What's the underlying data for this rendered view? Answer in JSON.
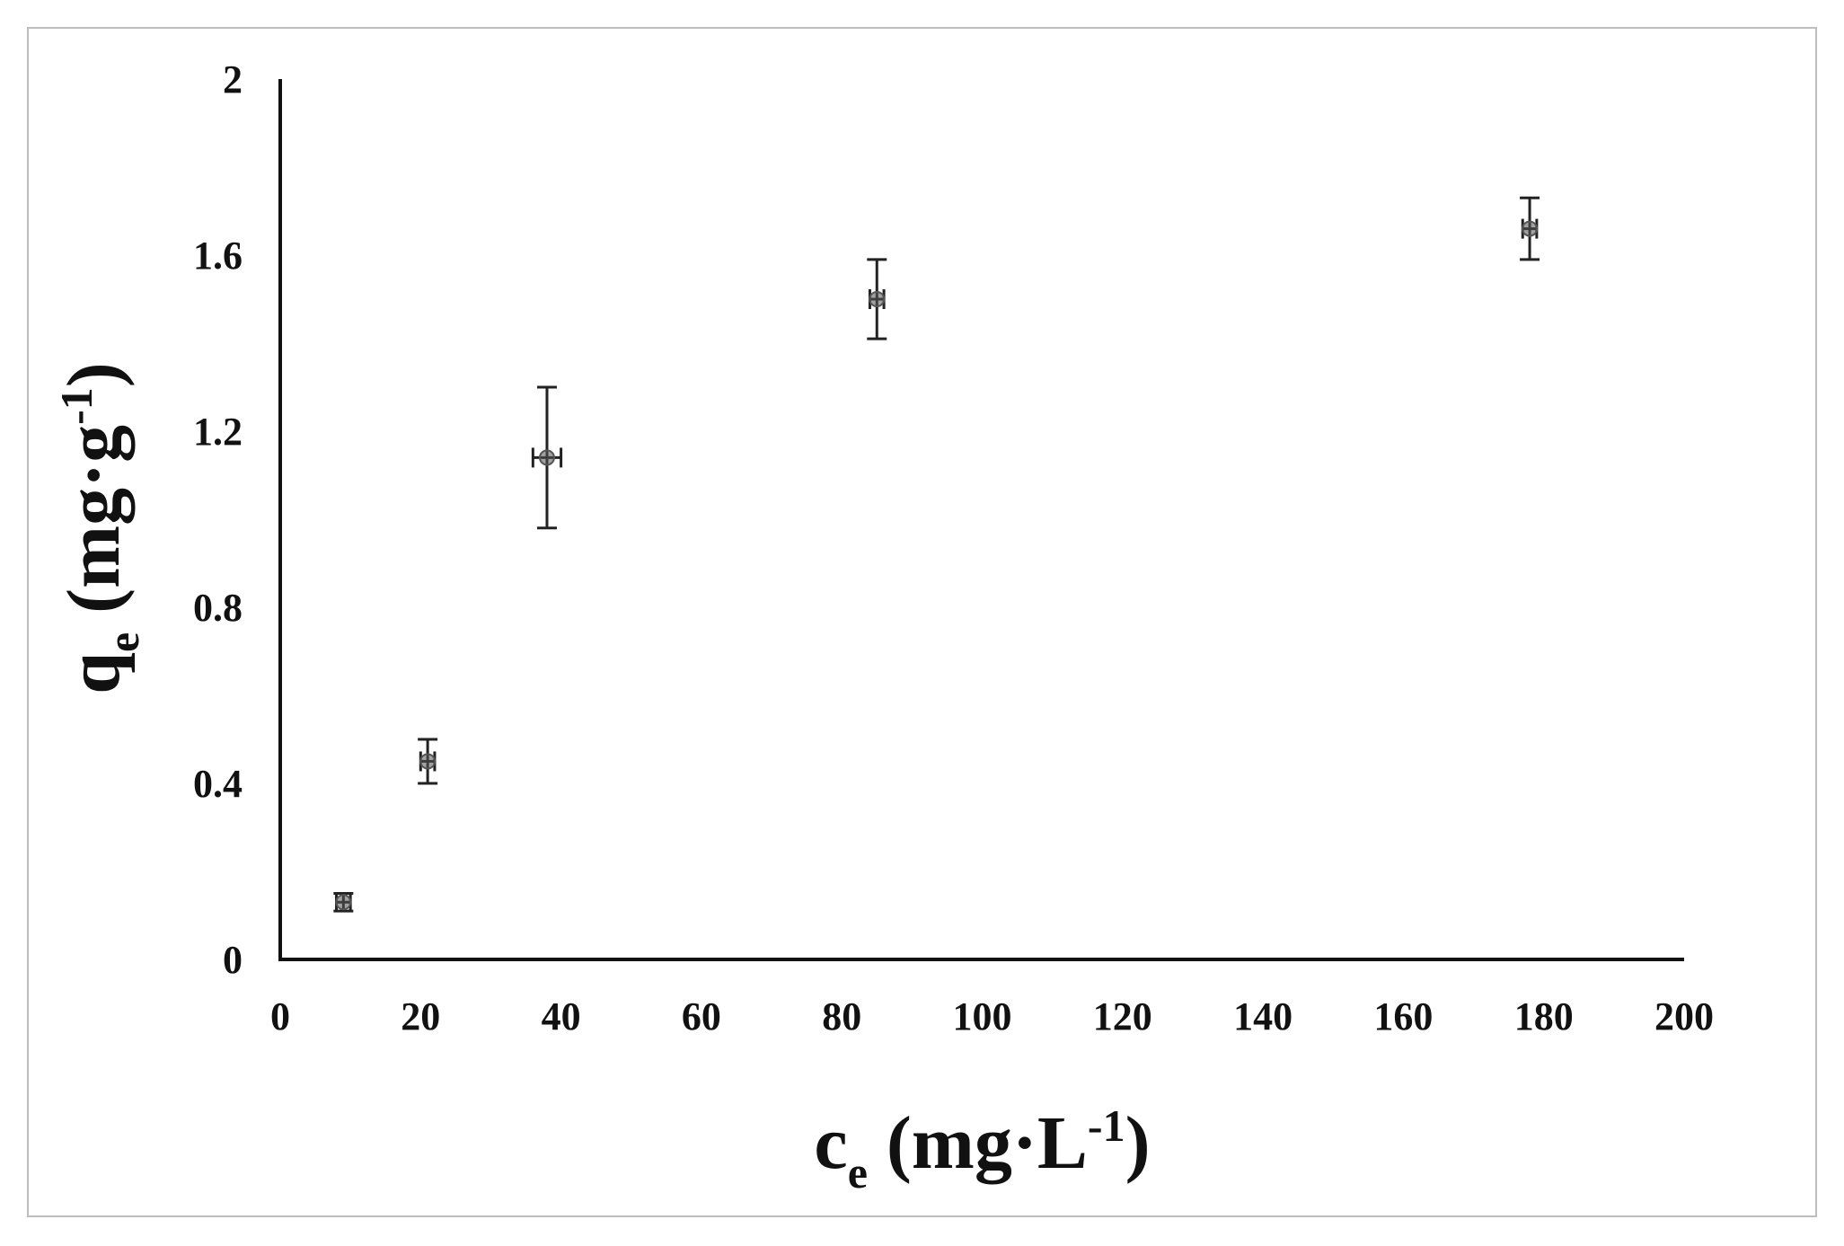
{
  "chart_data": {
    "type": "scatter",
    "title": "",
    "xlabel": {
      "main": "c",
      "sub": "e",
      "unit_pre": " (mg·L",
      "sup": "-1",
      "unit_post": ")"
    },
    "ylabel": {
      "main": "q",
      "sub": "e",
      "unit_pre": " (mg·g",
      "sup": "-1",
      "unit_post": ")"
    },
    "xlim": [
      0,
      200
    ],
    "ylim": [
      0,
      2
    ],
    "x_ticks": [
      0,
      20,
      40,
      60,
      80,
      100,
      120,
      140,
      160,
      180,
      200
    ],
    "y_ticks": [
      0,
      0.4,
      0.8,
      1.2,
      1.6,
      2
    ],
    "x_tick_labels": [
      "0",
      "20",
      "40",
      "60",
      "80",
      "100",
      "120",
      "140",
      "160",
      "180",
      "200"
    ],
    "y_tick_labels": [
      "0",
      "0.4",
      "0.8",
      "1.2",
      "1.6",
      "2"
    ],
    "grid": false,
    "series": [
      {
        "points": [
          {
            "x": 9,
            "y": 0.13,
            "x_err": 1,
            "y_err": 0.02
          },
          {
            "x": 21,
            "y": 0.45,
            "x_err": 1,
            "y_err": 0.05
          },
          {
            "x": 38,
            "y": 1.14,
            "x_err": 2,
            "y_err": 0.16
          },
          {
            "x": 85,
            "y": 1.5,
            "x_err": 1,
            "y_err": 0.09
          },
          {
            "x": 178,
            "y": 1.66,
            "x_err": 1,
            "y_err": 0.07
          }
        ]
      }
    ],
    "colors": {
      "axis": "#111111",
      "marker": "#555555",
      "errorbar": "#222222",
      "frame": "#bdbdbd"
    }
  }
}
